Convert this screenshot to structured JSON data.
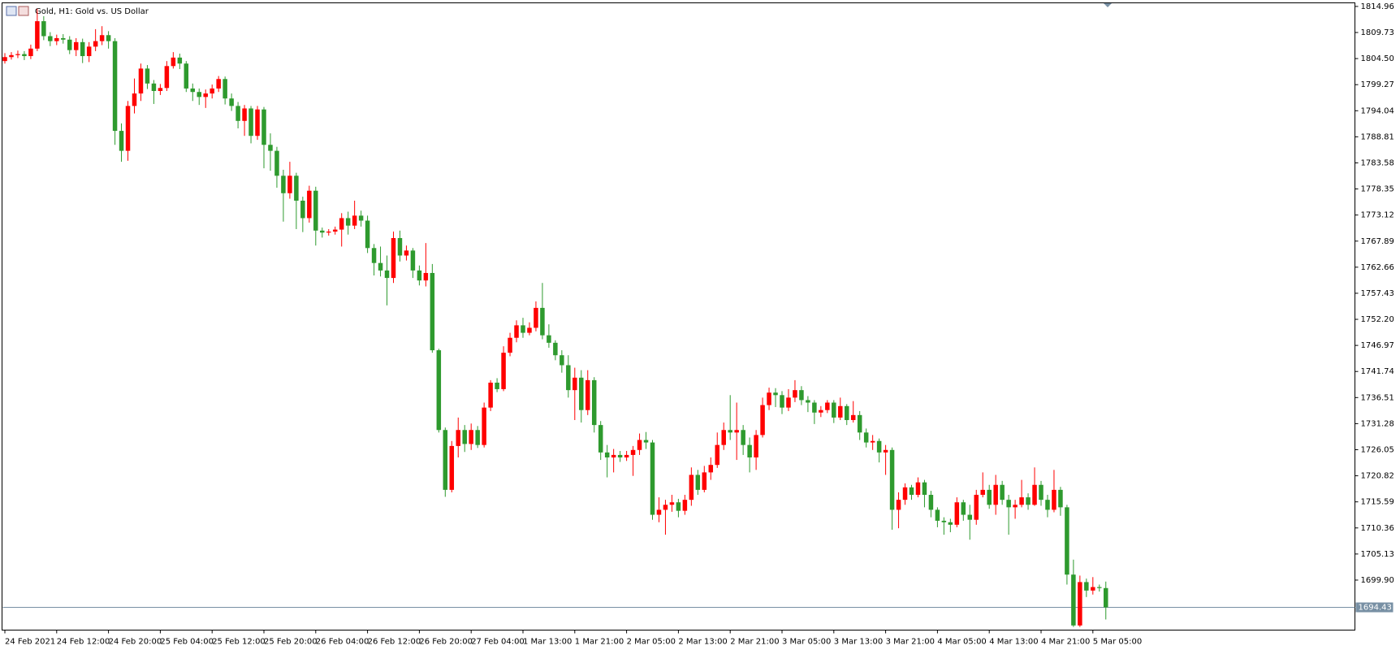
{
  "chart_data": {
    "type": "candlestick",
    "title": "Gold, H1:  Gold vs. US Dollar",
    "up_color": "#ff0000",
    "down_color": "#2e9a2e",
    "price_line_color": "#7890a4",
    "ylim": [
      1689.87,
      1815.68
    ],
    "yticks": [
      1814.96,
      1809.73,
      {
        "value": 1804.5,
        "label": "1804.50"
      },
      1799.27,
      1794.04,
      1788.81,
      1783.58,
      1778.35,
      1773.12,
      1767.89,
      1762.66,
      1757.43,
      {
        "value": 1752.2,
        "label": "1752.20"
      },
      1746.97,
      1741.74,
      1736.51,
      1731.28,
      1726.05,
      1720.82,
      1715.59,
      1710.36,
      1705.13,
      {
        "value": 1699.9,
        "label": "1699.90"
      }
    ],
    "categories": [
      "24 Feb 2021",
      null,
      null,
      null,
      null,
      null,
      null,
      null,
      "24 Feb 12:00",
      null,
      null,
      null,
      null,
      null,
      null,
      null,
      "24 Feb 20:00",
      null,
      null,
      null,
      null,
      null,
      null,
      null,
      "25 Feb 04:00",
      null,
      null,
      null,
      null,
      null,
      null,
      null,
      "25 Feb 12:00",
      null,
      null,
      null,
      null,
      null,
      null,
      null,
      "25 Feb 20:00",
      null,
      null,
      null,
      null,
      null,
      null,
      null,
      "26 Feb 04:00",
      null,
      null,
      null,
      null,
      null,
      null,
      null,
      "26 Feb 12:00",
      null,
      null,
      null,
      null,
      null,
      null,
      null,
      "26 Feb 20:00",
      null,
      null,
      null,
      null,
      null,
      null,
      null,
      "27 Feb 04:00",
      null,
      null,
      null,
      null,
      null,
      null,
      null,
      "1 Mar 13:00",
      null,
      null,
      null,
      null,
      null,
      null,
      null,
      "1 Mar 21:00",
      null,
      null,
      null,
      null,
      null,
      null,
      null,
      "2 Mar 05:00",
      null,
      null,
      null,
      null,
      null,
      null,
      null,
      "2 Mar 13:00",
      null,
      null,
      null,
      null,
      null,
      null,
      null,
      "2 Mar 21:00",
      null,
      null,
      null,
      null,
      null,
      null,
      null,
      "3 Mar 05:00",
      null,
      null,
      null,
      null,
      null,
      null,
      null,
      "3 Mar 13:00",
      null,
      null,
      null,
      null,
      null,
      null,
      null,
      "3 Mar 21:00",
      null,
      null,
      null,
      null,
      null,
      null,
      null,
      "4 Mar 05:00",
      null,
      null,
      null,
      null,
      null,
      null,
      null,
      "4 Mar 13:00",
      null,
      null,
      null,
      null,
      null,
      null,
      null,
      "4 Mar 21:00",
      null,
      null,
      null,
      null,
      null,
      null,
      null,
      "5 Mar 05:00",
      null,
      null
    ],
    "open": [
      1804.0,
      1804.8,
      1805.2,
      1805.4,
      1805.0,
      1806.5,
      1812.0,
      1809.0,
      1808.0,
      1808.6,
      1808.3,
      1806.2,
      1807.8,
      1805.0,
      1806.9,
      1808.0,
      1809.2,
      1808.0,
      1790.0,
      1786.0,
      1795.0,
      1797.5,
      1802.5,
      1799.5,
      1798.0,
      1798.6,
      1803.0,
      1804.7,
      1803.5,
      1798.5,
      1797.8,
      1796.8,
      1797.5,
      1798.5,
      1800.4,
      1796.5,
      1795.0,
      1792.0,
      1794.5,
      1789.0,
      1794.3,
      1787.2,
      1786.0,
      1781.0,
      1777.5,
      1781.0,
      1776.0,
      1772.5,
      1778.0,
      1770.0,
      1769.6,
      1769.8,
      1770.2,
      1772.5,
      1771.0,
      1773.0,
      1772.0,
      1766.5,
      1763.5,
      1762.0,
      1760.5,
      1768.5,
      1765.0,
      1766.0,
      1762.0,
      1760.0,
      1761.5,
      1746.0,
      1730.0,
      1718.0,
      1726.8,
      1730.0,
      1727.2,
      1730.0,
      1727.0,
      1734.5,
      1739.5,
      1738.2,
      1745.5,
      1748.5,
      1751.0,
      1749.5,
      1750.5,
      1754.5,
      1749.0,
      1747.5,
      1745.0,
      1743.0,
      1738.0,
      1740.5,
      1734.0,
      1740.0,
      1731.0,
      1725.5,
      1724.5,
      1725.0,
      1724.5,
      1725.0,
      1726.0,
      1728.0,
      1727.5,
      1713.0,
      1714.0,
      1715.0,
      1715.5,
      1713.8,
      1716.0,
      1721.0,
      1718.0,
      1721.5,
      1723.0,
      1727.0,
      1730.0,
      1729.5,
      1730.0,
      1727.0,
      1724.5,
      1729.0,
      1735.0,
      1737.5,
      1737.0,
      1734.5,
      1736.5,
      1738.0,
      1736.0,
      1735.5,
      1733.5,
      1734.0,
      1735.5,
      1732.5,
      1734.8,
      1732.0,
      1733.0,
      1729.5,
      1727.5,
      1727.8,
      1725.5,
      1726.0,
      1714.0,
      1716.0,
      1718.5,
      1717.0,
      1719.5,
      1717.0,
      1714.0,
      1711.8,
      1711.5,
      1711.0,
      1715.5,
      1713.0,
      1712.0,
      1717.0,
      1718.0,
      1715.0,
      1719.0,
      1716.0,
      1714.5,
      1715.0,
      1716.5,
      1715.0,
      1719.0,
      1716.0,
      1714.0,
      1718.0,
      1714.5,
      1701.0,
      1690.8,
      1699.5,
      1697.8,
      1698.5,
      1698.3
    ],
    "high": [
      1805.6,
      1805.8,
      1806.1,
      1806.0,
      1807.3,
      1814.5,
      1813.0,
      1809.8,
      1809.3,
      1809.4,
      1809.0,
      1808.6,
      1808.5,
      1807.8,
      1810.4,
      1811.0,
      1810.0,
      1808.6,
      1791.5,
      1796.0,
      1800.5,
      1803.5,
      1803.2,
      1800.2,
      1799.4,
      1804.0,
      1805.8,
      1805.5,
      1804.0,
      1799.5,
      1798.5,
      1798.3,
      1799.3,
      1801.0,
      1800.9,
      1797.5,
      1795.8,
      1795.2,
      1795.0,
      1795.0,
      1794.8,
      1789.5,
      1786.8,
      1782.2,
      1783.8,
      1781.6,
      1776.8,
      1779.0,
      1778.8,
      1770.6,
      1770.3,
      1770.8,
      1773.5,
      1773.8,
      1776.0,
      1774.0,
      1773.0,
      1767.3,
      1766.8,
      1765.0,
      1769.8,
      1770.0,
      1767.0,
      1766.5,
      1763.0,
      1767.5,
      1763.3,
      1746.3,
      1730.5,
      1727.8,
      1732.5,
      1731.0,
      1731.3,
      1730.8,
      1735.5,
      1740.0,
      1740.4,
      1746.8,
      1749.5,
      1752.0,
      1752.5,
      1751.6,
      1755.8,
      1759.5,
      1751.2,
      1748.0,
      1746.0,
      1745.0,
      1742.5,
      1742.0,
      1742.0,
      1740.6,
      1731.8,
      1727.0,
      1726.2,
      1725.8,
      1725.8,
      1726.8,
      1729.3,
      1729.6,
      1728.0,
      1716.5,
      1716.0,
      1717.0,
      1716.2,
      1717.0,
      1722.5,
      1722.0,
      1722.8,
      1724.5,
      1729.5,
      1731.5,
      1737.0,
      1735.5,
      1731.0,
      1728.5,
      1730.0,
      1736.5,
      1738.5,
      1738.4,
      1737.8,
      1738.2,
      1740.0,
      1738.8,
      1736.8,
      1736.0,
      1734.8,
      1736.0,
      1736.0,
      1736.5,
      1735.2,
      1735.8,
      1733.8,
      1730.3,
      1729.0,
      1728.3,
      1727.0,
      1726.5,
      1717.5,
      1719.3,
      1719.0,
      1720.5,
      1720.0,
      1717.8,
      1714.5,
      1712.5,
      1712.2,
      1716.5,
      1716.0,
      1715.0,
      1718.0,
      1721.5,
      1719.0,
      1721.0,
      1719.8,
      1717.0,
      1716.0,
      1720.0,
      1717.3,
      1722.5,
      1719.8,
      1717.0,
      1722.0,
      1718.6,
      1715.0,
      1704.0,
      1700.8,
      1700.2,
      1700.5,
      1699.0,
      1699.6
    ],
    "low": [
      1803.5,
      1804.3,
      1804.6,
      1804.2,
      1804.4,
      1806.0,
      1808.2,
      1807.0,
      1807.2,
      1807.5,
      1805.4,
      1805.0,
      1803.6,
      1803.8,
      1806.0,
      1807.2,
      1806.5,
      1787.2,
      1783.8,
      1784.0,
      1793.5,
      1796.0,
      1798.4,
      1795.4,
      1797.2,
      1798.0,
      1802.5,
      1802.4,
      1797.8,
      1796.0,
      1795.2,
      1794.6,
      1796.5,
      1797.8,
      1795.3,
      1794.0,
      1790.5,
      1789.0,
      1787.5,
      1788.2,
      1782.5,
      1782.0,
      1778.6,
      1771.8,
      1776.4,
      1770.3,
      1769.7,
      1771.6,
      1767.0,
      1768.6,
      1769.0,
      1769.2,
      1766.8,
      1769.2,
      1770.3,
      1770.8,
      1765.5,
      1761.0,
      1760.8,
      1755.0,
      1759.5,
      1763.8,
      1764.0,
      1760.5,
      1759.0,
      1758.8,
      1745.5,
      1729.5,
      1716.6,
      1717.5,
      1724.5,
      1725.6,
      1726.0,
      1726.4,
      1726.5,
      1733.8,
      1737.6,
      1737.8,
      1744.8,
      1747.6,
      1748.5,
      1749.0,
      1749.8,
      1748.2,
      1746.5,
      1744.0,
      1741.5,
      1736.5,
      1732.0,
      1731.5,
      1733.0,
      1729.5,
      1724.0,
      1720.5,
      1721.5,
      1723.6,
      1723.8,
      1720.8,
      1725.0,
      1726.2,
      1712.0,
      1711.5,
      1709.0,
      1713.6,
      1712.5,
      1713.0,
      1714.8,
      1717.0,
      1717.5,
      1720.0,
      1722.4,
      1726.0,
      1728.0,
      1724.0,
      1725.0,
      1721.5,
      1722.0,
      1728.5,
      1734.0,
      1734.6,
      1733.2,
      1733.8,
      1735.6,
      1735.0,
      1733.6,
      1731.2,
      1732.6,
      1733.4,
      1731.4,
      1732.0,
      1731.0,
      1731.5,
      1728.0,
      1726.5,
      1726.0,
      1723.5,
      1721.0,
      1710.0,
      1710.3,
      1715.0,
      1716.0,
      1716.5,
      1714.5,
      1712.5,
      1710.5,
      1709.0,
      1709.5,
      1710.5,
      1711.8,
      1708.0,
      1711.0,
      1716.5,
      1714.2,
      1713.0,
      1715.0,
      1709.0,
      1712.2,
      1714.5,
      1714.0,
      1714.8,
      1714.8,
      1712.5,
      1713.5,
      1712.8,
      1699.0,
      1690.5,
      1690.5,
      1696.5,
      1697.0,
      1697.6,
      1692.0
    ],
    "close": [
      1804.8,
      1805.2,
      1805.4,
      1805.0,
      1806.5,
      1812.0,
      1809.0,
      1808.0,
      1808.6,
      1808.3,
      1806.2,
      1807.8,
      1805.0,
      1806.9,
      1808.0,
      1809.2,
      1808.0,
      1790.0,
      1786.0,
      1795.0,
      1797.5,
      1802.5,
      1799.5,
      1798.0,
      1798.6,
      1803.0,
      1804.7,
      1803.5,
      1798.5,
      1797.8,
      1796.8,
      1797.5,
      1798.5,
      1800.4,
      1796.5,
      1795.0,
      1792.0,
      1794.5,
      1789.0,
      1794.3,
      1787.2,
      1786.0,
      1781.0,
      1777.5,
      1781.0,
      1776.0,
      1772.5,
      1778.0,
      1770.0,
      1769.6,
      1769.8,
      1770.2,
      1772.5,
      1771.0,
      1773.0,
      1772.0,
      1766.5,
      1763.5,
      1762.0,
      1760.5,
      1768.5,
      1765.0,
      1766.0,
      1762.0,
      1760.0,
      1761.5,
      1746.0,
      1730.0,
      1718.0,
      1726.8,
      1730.0,
      1727.2,
      1730.0,
      1727.0,
      1734.5,
      1739.5,
      1738.2,
      1745.5,
      1748.5,
      1751.0,
      1749.5,
      1750.5,
      1754.5,
      1749.0,
      1747.5,
      1745.0,
      1743.0,
      1738.0,
      1740.5,
      1734.0,
      1740.0,
      1731.0,
      1725.5,
      1724.5,
      1725.0,
      1724.5,
      1725.0,
      1726.0,
      1728.0,
      1727.5,
      1713.0,
      1714.0,
      1715.0,
      1715.5,
      1713.8,
      1716.0,
      1721.0,
      1718.0,
      1721.5,
      1723.0,
      1727.0,
      1730.0,
      1729.5,
      1730.0,
      1727.0,
      1724.5,
      1729.0,
      1735.0,
      1737.5,
      1737.0,
      1734.5,
      1736.5,
      1738.0,
      1736.0,
      1735.5,
      1733.5,
      1734.0,
      1735.5,
      1732.5,
      1734.8,
      1732.0,
      1733.0,
      1729.5,
      1727.5,
      1727.8,
      1725.5,
      1726.0,
      1714.0,
      1716.0,
      1718.5,
      1717.0,
      1719.5,
      1717.0,
      1714.0,
      1711.8,
      1711.5,
      1711.0,
      1715.5,
      1713.0,
      1712.0,
      1717.0,
      1718.0,
      1715.0,
      1719.0,
      1716.0,
      1714.5,
      1715.0,
      1716.5,
      1715.0,
      1719.0,
      1716.0,
      1714.0,
      1718.0,
      1714.5,
      1701.0,
      1690.8,
      1699.5,
      1697.8,
      1698.5,
      1698.3,
      1694.43
    ]
  }
}
